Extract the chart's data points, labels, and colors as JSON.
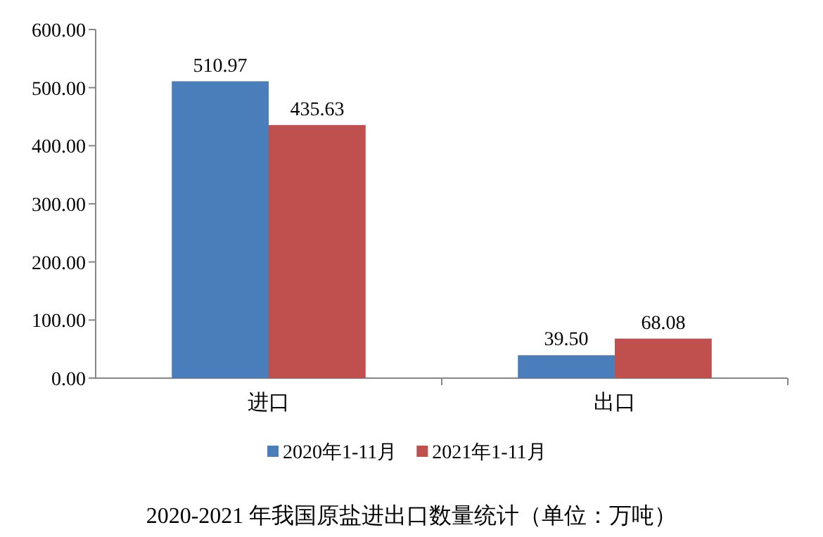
{
  "chart_data": {
    "type": "bar",
    "title": "2020-2021 年我国原盐进出口数量统计（单位：万吨）",
    "categories": [
      "进口",
      "出口"
    ],
    "series": [
      {
        "name": "2020年1-11月",
        "color": "#4a7ebb",
        "values": [
          510.97,
          39.5
        ],
        "value_labels": [
          "510.97",
          "39.50"
        ]
      },
      {
        "name": "2021年1-11月",
        "color": "#c0504d",
        "values": [
          435.63,
          68.08
        ],
        "value_labels": [
          "435.63",
          "68.08"
        ]
      }
    ],
    "ylim": [
      0,
      600
    ],
    "yticks": [
      {
        "value": 0,
        "label": "0.00"
      },
      {
        "value": 100,
        "label": "100.00"
      },
      {
        "value": 200,
        "label": "200.00"
      },
      {
        "value": 300,
        "label": "300.00"
      },
      {
        "value": 400,
        "label": "400.00"
      },
      {
        "value": 500,
        "label": "500.00"
      },
      {
        "value": 600,
        "label": "600.00"
      }
    ],
    "grid": false,
    "legend": "bottom"
  }
}
